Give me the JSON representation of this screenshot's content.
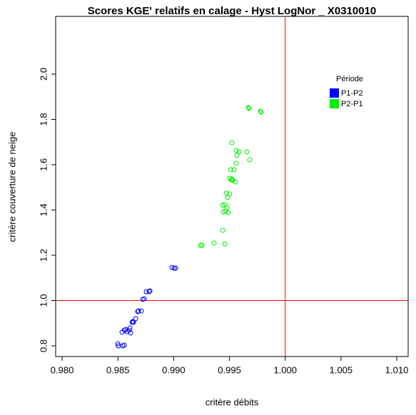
{
  "chart_data": {
    "type": "scatter",
    "title": "Scores KGE' relatifs en calage -  Hyst LogNor _ X0310010",
    "x_label": "critère débits",
    "y_label": "critère couverture de neige",
    "xlim": [
      0.97942,
      1.01102
    ],
    "ylim": [
      0.7527,
      2.255
    ],
    "xticks": [
      {
        "value": 0.98,
        "label": "0.980"
      },
      {
        "value": 0.985,
        "label": "0.985"
      },
      {
        "value": 0.99,
        "label": "0.990"
      },
      {
        "value": 0.995,
        "label": "0.995"
      },
      {
        "value": 1.0,
        "label": "1.000"
      },
      {
        "value": 1.005,
        "label": "1.005"
      },
      {
        "value": 1.01,
        "label": "1.010"
      }
    ],
    "yticks": [
      0.8,
      {
        "value": 1.0,
        "label": "1.0"
      },
      1.2,
      1.4,
      1.6,
      1.8,
      {
        "value": 2.0,
        "label": "2.0"
      }
    ],
    "vline": 1.0,
    "hline": 1.0,
    "line_color": "#ff0000",
    "legend_title": "Période",
    "legend_title_color": "#00aa00",
    "legend": "topright",
    "series": [
      {
        "name": "P1-P2",
        "color": "#0000ff",
        "x": [
          0.98499,
          0.98505,
          0.98544,
          0.98557,
          0.98537,
          0.98569,
          0.98557,
          0.98582,
          0.98601,
          0.98614,
          0.98608,
          0.98627,
          0.9864,
          0.98633,
          0.98659,
          0.98678,
          0.98684,
          0.9871,
          0.98723,
          0.98736,
          0.98755,
          0.9878,
          0.98787,
          0.98985,
          0.99004,
          0.99017
        ],
        "values": [
          0.809,
          0.8,
          0.8,
          0.803,
          0.86,
          0.872,
          0.869,
          0.863,
          0.869,
          0.857,
          0.879,
          0.904,
          0.904,
          0.907,
          0.92,
          0.951,
          0.954,
          0.954,
          1.005,
          1.008,
          1.039,
          1.039,
          1.043,
          1.146,
          1.143,
          1.143
        ]
      },
      {
        "name": "P2-P1",
        "color": "#00ee00",
        "x": [
          0.99241,
          0.99254,
          0.99362,
          0.99458,
          0.99439,
          0.99465,
          0.99446,
          0.99478,
          0.99439,
          0.99458,
          0.9949,
          0.99484,
          0.99471,
          0.99503,
          0.99503,
          0.99516,
          0.99522,
          0.99554,
          0.99529,
          0.99541,
          0.9951,
          0.99561,
          0.99567,
          0.99561,
          0.99586,
          0.99522,
          0.99657,
          0.99682,
          0.99669,
          0.99676,
          0.99778,
          0.99784
        ],
        "values": [
          1.244,
          1.244,
          1.254,
          1.25,
          1.31,
          1.395,
          1.392,
          1.411,
          1.42,
          1.424,
          1.389,
          1.455,
          1.474,
          1.471,
          1.54,
          1.534,
          1.537,
          1.524,
          1.531,
          1.578,
          1.578,
          1.606,
          1.641,
          1.663,
          1.657,
          1.697,
          1.657,
          1.622,
          1.852,
          1.849,
          1.836,
          1.833
        ]
      }
    ]
  }
}
